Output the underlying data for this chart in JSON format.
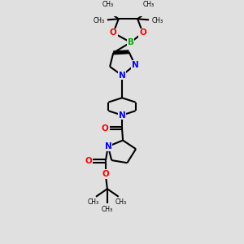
{
  "background_color": "#e0e0e0",
  "atom_colors": {
    "N": "#0000ff",
    "O": "#ff0000",
    "B": "#00aa00"
  },
  "bond_color": "#000000",
  "bond_width": 1.5,
  "figsize": [
    3.0,
    3.0
  ],
  "dpi": 100,
  "xlim": [
    0,
    10
  ],
  "ylim": [
    0,
    13
  ]
}
